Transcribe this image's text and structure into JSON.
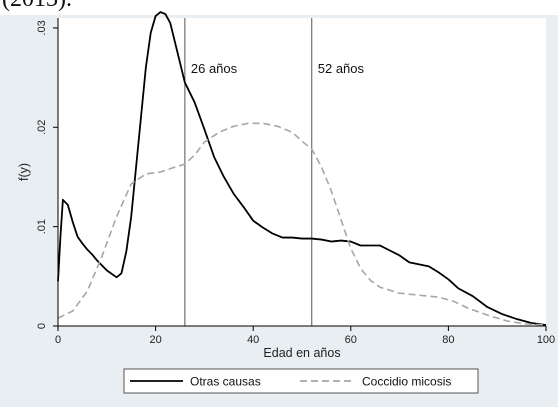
{
  "page": {
    "top_caption_fragment": "(2013)."
  },
  "chart_data": {
    "type": "line",
    "xlabel": "Edad en años",
    "ylabel": "f(y)",
    "xlim": [
      0,
      100
    ],
    "ylim": [
      0,
      0.031
    ],
    "x_ticks": [
      0,
      20,
      40,
      60,
      80,
      100
    ],
    "x_tick_labels": [
      "0",
      "20",
      "40",
      "60",
      "80",
      "100"
    ],
    "y_ticks": [
      0,
      0.01,
      0.02,
      0.03
    ],
    "y_tick_labels": [
      "0",
      ".01",
      ".02",
      ".03"
    ],
    "grid": false,
    "legend_position": "bottom",
    "background": "#e8eef2",
    "plot_background": "#ffffff",
    "vlines": [
      {
        "x": 26,
        "label": "26 años"
      },
      {
        "x": 52,
        "label": "52 años"
      }
    ],
    "series": [
      {
        "name": "Otras causas",
        "color": "#000000",
        "style": "solid",
        "points": [
          [
            0,
            0.0045
          ],
          [
            0.5,
            0.009
          ],
          [
            1,
            0.0127
          ],
          [
            2,
            0.0122
          ],
          [
            3,
            0.0105
          ],
          [
            4,
            0.009
          ],
          [
            5,
            0.0083
          ],
          [
            6,
            0.0077
          ],
          [
            7,
            0.0072
          ],
          [
            8,
            0.0066
          ],
          [
            10,
            0.0056
          ],
          [
            12,
            0.0049
          ],
          [
            13,
            0.0053
          ],
          [
            14,
            0.0075
          ],
          [
            15,
            0.011
          ],
          [
            16,
            0.016
          ],
          [
            17,
            0.021
          ],
          [
            18,
            0.026
          ],
          [
            19,
            0.0295
          ],
          [
            20,
            0.0312
          ],
          [
            21,
            0.0316
          ],
          [
            22,
            0.0314
          ],
          [
            23,
            0.0305
          ],
          [
            24,
            0.0285
          ],
          [
            25,
            0.0265
          ],
          [
            26,
            0.0245
          ],
          [
            28,
            0.0225
          ],
          [
            30,
            0.0198
          ],
          [
            32,
            0.017
          ],
          [
            34,
            0.015
          ],
          [
            36,
            0.0133
          ],
          [
            38,
            0.012
          ],
          [
            40,
            0.0106
          ],
          [
            42,
            0.0099
          ],
          [
            44,
            0.0093
          ],
          [
            46,
            0.0089
          ],
          [
            48,
            0.0089
          ],
          [
            50,
            0.0088
          ],
          [
            52,
            0.0088
          ],
          [
            54,
            0.0087
          ],
          [
            56,
            0.0085
          ],
          [
            58,
            0.0086
          ],
          [
            60,
            0.0085
          ],
          [
            62,
            0.0081
          ],
          [
            66,
            0.0081
          ],
          [
            68,
            0.0076
          ],
          [
            70,
            0.0071
          ],
          [
            72,
            0.0064
          ],
          [
            74,
            0.0062
          ],
          [
            76,
            0.006
          ],
          [
            78,
            0.0054
          ],
          [
            80,
            0.0047
          ],
          [
            82,
            0.0038
          ],
          [
            85,
            0.003
          ],
          [
            88,
            0.0019
          ],
          [
            91,
            0.0012
          ],
          [
            94,
            0.0007
          ],
          [
            97,
            0.0003
          ],
          [
            100,
            0.0001
          ]
        ]
      },
      {
        "name": "Coccidio micosis",
        "color": "#a6a6a6",
        "style": "dashed",
        "points": [
          [
            0,
            0.0008
          ],
          [
            3,
            0.0015
          ],
          [
            6,
            0.0035
          ],
          [
            9,
            0.007
          ],
          [
            12,
            0.011
          ],
          [
            15,
            0.0143
          ],
          [
            18,
            0.0153
          ],
          [
            21,
            0.0155
          ],
          [
            24,
            0.016
          ],
          [
            26,
            0.0163
          ],
          [
            28,
            0.0172
          ],
          [
            30,
            0.0185
          ],
          [
            33,
            0.0195
          ],
          [
            36,
            0.0201
          ],
          [
            39,
            0.0204
          ],
          [
            42,
            0.0204
          ],
          [
            45,
            0.0201
          ],
          [
            48,
            0.0195
          ],
          [
            50,
            0.0186
          ],
          [
            52,
            0.0178
          ],
          [
            54,
            0.016
          ],
          [
            56,
            0.0136
          ],
          [
            58,
            0.0107
          ],
          [
            60,
            0.0078
          ],
          [
            62,
            0.0058
          ],
          [
            64,
            0.0046
          ],
          [
            66,
            0.0039
          ],
          [
            70,
            0.0033
          ],
          [
            74,
            0.0031
          ],
          [
            78,
            0.0029
          ],
          [
            81,
            0.0025
          ],
          [
            84,
            0.0018
          ],
          [
            88,
            0.0011
          ],
          [
            92,
            0.0005
          ],
          [
            96,
            0.0002
          ],
          [
            100,
            0.0001
          ]
        ]
      }
    ],
    "legend": [
      {
        "label": "Otras causas",
        "color": "#000000",
        "style": "solid"
      },
      {
        "label": "Coccidio micosis",
        "color": "#a6a6a6",
        "style": "dashed"
      }
    ]
  }
}
